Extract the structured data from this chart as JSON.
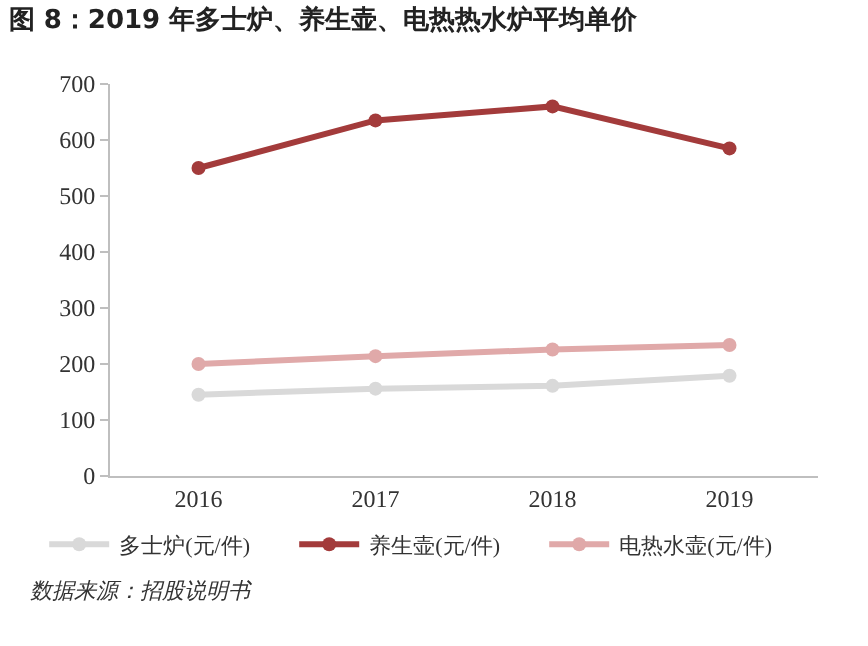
{
  "chart_data": {
    "type": "line",
    "title": "图 8：2019 年多士炉、养生壶、电热热水炉平均单价",
    "categories": [
      "2016",
      "2017",
      "2018",
      "2019"
    ],
    "series": [
      {
        "name": "多士炉(元/件)",
        "color": "#d9d9d9",
        "values": [
          145,
          156,
          161,
          179
        ]
      },
      {
        "name": "养生壶(元/件)",
        "color": "#a33b3b",
        "values": [
          550,
          635,
          660,
          585
        ]
      },
      {
        "name": "电热水壶(元/件)",
        "color": "#e0a9a9",
        "values": [
          200,
          214,
          226,
          234
        ]
      }
    ],
    "ylim": [
      0,
      700
    ],
    "yticks": [
      0,
      100,
      200,
      300,
      400,
      500,
      600,
      700
    ],
    "grid": false,
    "legend": "bottom",
    "marker": "circle",
    "line_style": "solid",
    "annotations": [
      "数据来源：招股说明书"
    ]
  }
}
